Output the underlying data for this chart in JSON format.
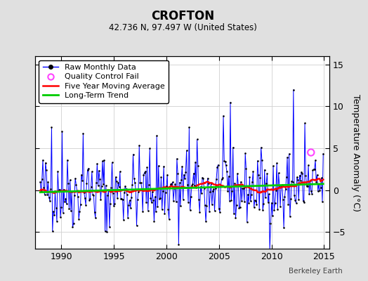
{
  "title": "CROFTON",
  "subtitle": "42.736 N, 97.497 W (United States)",
  "ylabel": "Temperature Anomaly (°C)",
  "credit": "Berkeley Earth",
  "xlim": [
    1987.5,
    2015.5
  ],
  "ylim": [
    -7,
    16
  ],
  "yticks": [
    -5,
    0,
    5,
    10,
    15
  ],
  "xticks": [
    1990,
    1995,
    2000,
    2005,
    2010,
    2015
  ],
  "raw_color": "#0000ff",
  "ma_color": "#ff0000",
  "trend_color": "#00cc00",
  "dot_color": "#000000",
  "qc_color": "#ff44ff",
  "bg_color": "#e0e0e0",
  "plot_bg": "#ffffff",
  "legend_labels": [
    "Raw Monthly Data",
    "Quality Control Fail",
    "Five Year Moving Average",
    "Long-Term Trend"
  ],
  "seed": 42,
  "n_months": 324,
  "start_year": 1988.0,
  "qc_x": [
    2013.75
  ],
  "qc_y": [
    4.5
  ]
}
